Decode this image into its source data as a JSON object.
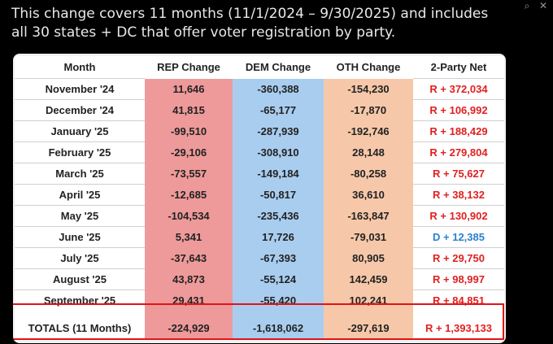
{
  "post": {
    "text": "This change covers 11 months (11/1/2024 – 9/30/2025) and includes all 30 states + DC that offer voter registration by party."
  },
  "icons": {
    "zoom": "magnifier-icon",
    "close": "close-icon"
  },
  "table": {
    "headers": [
      "Month",
      "REP Change",
      "DEM Change",
      "OTH Change",
      "2-Party Net"
    ],
    "rows": [
      {
        "month": "November '24",
        "rep": "11,646",
        "dem": "-360,388",
        "oth": "-154,230",
        "net": "R + 372,034",
        "party": "R"
      },
      {
        "month": "December '24",
        "rep": "41,815",
        "dem": "-65,177",
        "oth": "-17,870",
        "net": "R + 106,992",
        "party": "R"
      },
      {
        "month": "January '25",
        "rep": "-99,510",
        "dem": "-287,939",
        "oth": "-192,746",
        "net": "R + 188,429",
        "party": "R"
      },
      {
        "month": "February '25",
        "rep": "-29,106",
        "dem": "-308,910",
        "oth": "28,148",
        "net": "R + 279,804",
        "party": "R"
      },
      {
        "month": "March '25",
        "rep": "-73,557",
        "dem": "-149,184",
        "oth": "-80,258",
        "net": "R + 75,627",
        "party": "R"
      },
      {
        "month": "April '25",
        "rep": "-12,685",
        "dem": "-50,817",
        "oth": "36,610",
        "net": "R + 38,132",
        "party": "R"
      },
      {
        "month": "May '25",
        "rep": "-104,534",
        "dem": "-235,436",
        "oth": "-163,847",
        "net": "R + 130,902",
        "party": "R"
      },
      {
        "month": "June '25",
        "rep": "5,341",
        "dem": "17,726",
        "oth": "-79,031",
        "net": "D + 12,385",
        "party": "D"
      },
      {
        "month": "July '25",
        "rep": "-37,643",
        "dem": "-67,393",
        "oth": "80,905",
        "net": "R + 29,750",
        "party": "R"
      },
      {
        "month": "August '25",
        "rep": "43,873",
        "dem": "-55,124",
        "oth": "142,459",
        "net": "R + 98,997",
        "party": "R"
      },
      {
        "month": "September '25",
        "rep": "29,431",
        "dem": "-55,420",
        "oth": "102,241",
        "net": "R + 84,851",
        "party": "R"
      }
    ],
    "totals": {
      "month": "TOTALS (11 Months)",
      "rep": "-224,929",
      "dem": "-1,618,062",
      "oth": "-297,619",
      "net": "R + 1,393,133",
      "party": "R"
    }
  },
  "colors": {
    "rep": "#ee9a9a",
    "dem": "#a9cdef",
    "oth": "#f6c8a9",
    "net_r": "#e02020",
    "net_d": "#2d7fd0",
    "highlight": "#e0141a"
  }
}
